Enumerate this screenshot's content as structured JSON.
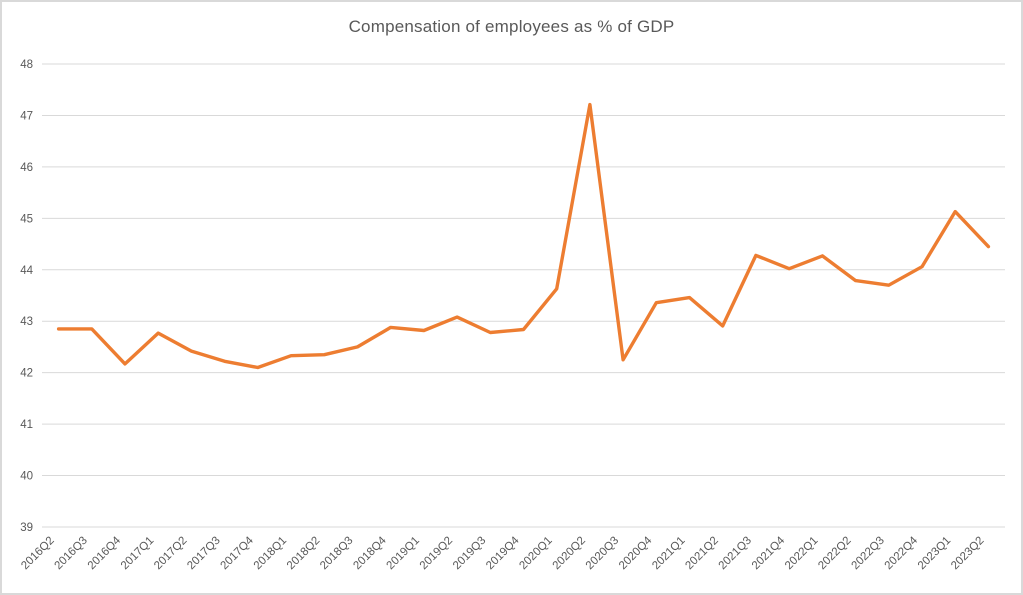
{
  "window": {
    "background_color": "#ffffff",
    "border_color": "#d9d9d9"
  },
  "chart_data": {
    "type": "line",
    "title": "Compensation of employees as % of GDP",
    "xlabel": "",
    "ylabel": "",
    "categories": [
      "2016Q2",
      "2016Q3",
      "2016Q4",
      "2017Q1",
      "2017Q2",
      "2017Q3",
      "2017Q4",
      "2018Q1",
      "2018Q2",
      "2018Q3",
      "2018Q4",
      "2019Q1",
      "2019Q2",
      "2019Q3",
      "2019Q4",
      "2020Q1",
      "2020Q2",
      "2020Q3",
      "2020Q4",
      "2021Q1",
      "2021Q2",
      "2021Q3",
      "2021Q4",
      "2022Q1",
      "2022Q2",
      "2022Q3",
      "2022Q4",
      "2023Q1",
      "2023Q2"
    ],
    "series": [
      {
        "name": "Compensation of employees as % of GDP",
        "values": [
          42.85,
          42.85,
          42.17,
          42.77,
          42.42,
          42.22,
          42.1,
          42.33,
          42.35,
          42.5,
          42.88,
          42.82,
          43.08,
          42.78,
          42.84,
          43.63,
          47.21,
          42.25,
          43.36,
          43.46,
          42.91,
          44.28,
          44.02,
          44.27,
          43.79,
          43.7,
          44.06,
          45.13,
          44.45
        ]
      }
    ],
    "ylim": [
      39,
      48
    ],
    "yticks": [
      39,
      40,
      41,
      42,
      43,
      44,
      45,
      46,
      47,
      48
    ],
    "grid": true,
    "legend_position": "none",
    "x_label_rotation_deg": -45,
    "line_color": "#ED7D31",
    "gridline_color": "#D9D9D9",
    "axis_label_color": "#595959",
    "title_color": "#595959"
  }
}
